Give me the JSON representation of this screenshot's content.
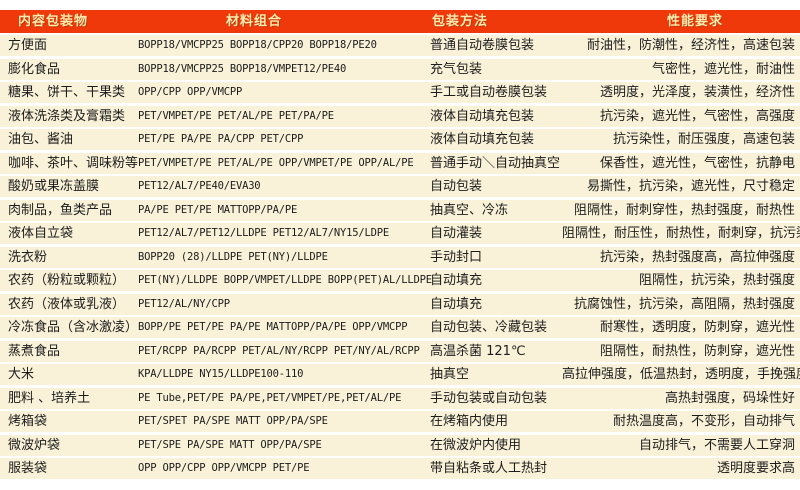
{
  "colors": {
    "header_bg": "#F0390B",
    "header_text": "#FFEDB0",
    "row_bg": "#F9F2D8",
    "body_text": "#1C1C1C",
    "page_bg": "#FFFFFF"
  },
  "table": {
    "headers": [
      "内容包装物",
      "材料组合",
      "包装方法",
      "性能要求"
    ],
    "rows": [
      {
        "item": "方便面",
        "materials": "BOPP18/VMCPP25  BOPP18/CPP20  BOPP18/PE20",
        "method": "普通自动卷膜包装",
        "requirements": "耐油性，防潮性，经济性，高速包装"
      },
      {
        "item": "膨化食品",
        "materials": "BOPP18/VMCPP25  BOPP18/VMPET12/PE40",
        "method": "充气包装",
        "requirements": "气密性，遮光性，耐油性"
      },
      {
        "item": "糖果、饼干、干果类",
        "materials": "OPP/CPP OPP/VMCPP",
        "method": "手工或自动卷膜包装",
        "requirements": "透明度，光泽度，装潢性，经济性"
      },
      {
        "item": "液体洗涤类及膏霜类",
        "materials": "PET/VMPET/PE PET/AL/PE  PET/PA/PE",
        "method": "液体自动填充包装",
        "requirements": "抗污染，遮光性，气密性，高强度"
      },
      {
        "item": "油包、酱油",
        "materials": "PET/PE  PA/PE PA/CPP PET/CPP",
        "method": "液体自动填充包装",
        "requirements": "抗污染性，耐压强度，高速包装"
      },
      {
        "item": "咖啡、茶叶、调味粉等",
        "materials": "PET/VMPET/PE PET/AL/PE OPP/VMPET/PE OPP/AL/PE",
        "method": "普通手动＼自动抽真空",
        "requirements": "保香性，遮光性，气密性，抗静电"
      },
      {
        "item": "酸奶或果冻盖膜",
        "materials": "PET12/AL7/PE40/EVA30",
        "method": "自动包装",
        "requirements": "易撕性，抗污染，遮光性，尺寸稳定"
      },
      {
        "item": "肉制品，鱼类产品",
        "materials": "PA/PE PET/PE MATTOPP/PA/PE",
        "method": "抽真空、冷冻",
        "requirements": "阻隔性，耐刺穿性，热封强度，耐热性"
      },
      {
        "item": "液体自立袋",
        "materials": "PET12/AL7/PET12/LLDPE PET12/AL7/NY15/LDPE",
        "method": "自动灌装",
        "requirements": "阻隔性，耐压性，耐热性，耐刺穿，抗污染"
      },
      {
        "item": "洗衣粉",
        "materials": "BOPP20 (28)/LLDPE PET(NY)/LLDPE",
        "method": "手动封口",
        "requirements": "抗污染，热封强度高，高拉伸强度"
      },
      {
        "item": "农药（粉粒或颗粒）",
        "materials": "PET(NY)/LLDPE BOPP/VMPET/LLDPE BOPP(PET)AL/LLDPE",
        "method": "自动填充",
        "requirements": "阻隔性，抗污染，热封强度"
      },
      {
        "item": "农药（液体或乳液）",
        "materials": "PET12/AL/NY/CPP",
        "method": "自动填充",
        "requirements": "抗腐蚀性，抗污染，高阻隔，热封强度"
      },
      {
        "item": "冷冻食品（含冰激凌）",
        "materials": "BOPP/PE PET/PE PA/PE MATTOPP/PA/PE OPP/VMCPP",
        "method": "自动包装、冷藏包装",
        "requirements": "耐寒性，透明度，防刺穿，遮光性"
      },
      {
        "item": "蒸煮食品",
        "materials": "PET/RCPP PA/RCPP PET/AL/NY/RCPP PET/NY/AL/RCPP",
        "method": "高温杀菌 121℃",
        "requirements": "阻隔性，耐热性，防刺穿，遮光性"
      },
      {
        "item": "大米",
        "materials": "KPA/LLDPE NY15/LLDPE100-110",
        "method": "抽真空",
        "requirements": "高拉伸强度，低温热封，透明度，手挽强度高"
      },
      {
        "item": "肥料 、培养土",
        "materials": "PE Tube,PET/PE  PA/PE,PET/VMPET/PE,PET/AL/PE",
        "method": "手动包装或自动包装",
        "requirements": "高热封强度，码垛性好"
      },
      {
        "item": "烤箱袋",
        "materials": "PET/SPET PA/SPE MATT OPP/PA/SPE",
        "method": "在烤箱内使用",
        "requirements": "耐热温度高，不变形，自动排气"
      },
      {
        "item": "微波炉袋",
        "materials": "PET/SPE PA/SPE MATT OPP/PA/SPE",
        "method": "在微波炉内使用",
        "requirements": "自动排气，不需要人工穿洞"
      },
      {
        "item": "服装袋",
        "materials": "OPP  OPP/CPP OPP/VMCPP PET/PE",
        "method": "带自粘条或人工热封",
        "requirements": "透明度要求高"
      }
    ]
  }
}
